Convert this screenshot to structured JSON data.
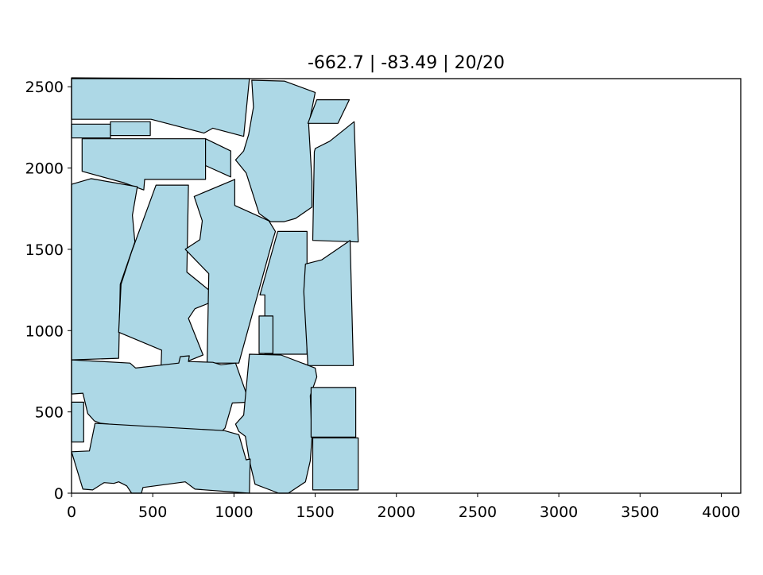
{
  "chart_data": {
    "type": "polygon",
    "title": "-662.7 | -83.49 | 20/20",
    "xlabel": "",
    "ylabel": "",
    "xlim": [
      0,
      4120
    ],
    "ylim": [
      0,
      2550
    ],
    "x_ticks": [
      0,
      500,
      1000,
      1500,
      2000,
      2500,
      3000,
      3500,
      4000
    ],
    "y_ticks": [
      0,
      500,
      1000,
      1500,
      2000,
      2500
    ],
    "grid": false,
    "fill_color": "#add8e6",
    "edge_color": "#000000",
    "polygons": [
      [
        [
          0,
          2555
        ],
        [
          1095,
          2550
        ],
        [
          1060,
          2195
        ],
        [
          870,
          2245
        ],
        [
          815,
          2215
        ],
        [
          490,
          2300
        ],
        [
          0,
          2300
        ]
      ],
      [
        [
          0,
          2270
        ],
        [
          240,
          2270
        ],
        [
          240,
          2185
        ],
        [
          0,
          2185
        ]
      ],
      [
        [
          240,
          2285
        ],
        [
          485,
          2285
        ],
        [
          485,
          2200
        ],
        [
          240,
          2200
        ]
      ],
      [
        [
          65,
          2180
        ],
        [
          825,
          2180
        ],
        [
          825,
          1930
        ],
        [
          450,
          1930
        ],
        [
          445,
          1865
        ],
        [
          320,
          1910
        ],
        [
          65,
          1980
        ]
      ],
      [
        [
          825,
          2180
        ],
        [
          980,
          2105
        ],
        [
          980,
          1945
        ],
        [
          825,
          2015
        ]
      ],
      [
        [
          1110,
          2540
        ],
        [
          1310,
          2535
        ],
        [
          1500,
          2465
        ],
        [
          1460,
          2265
        ],
        [
          1480,
          1920
        ],
        [
          1480,
          1760
        ],
        [
          1380,
          1690
        ],
        [
          1310,
          1670
        ],
        [
          1225,
          1670
        ],
        [
          1155,
          1720
        ],
        [
          1075,
          1970
        ],
        [
          1010,
          2050
        ],
        [
          1060,
          2105
        ],
        [
          1090,
          2205
        ],
        [
          1120,
          2375
        ]
      ],
      [
        [
          1510,
          2420
        ],
        [
          1710,
          2420
        ],
        [
          1640,
          2275
        ],
        [
          1455,
          2275
        ]
      ],
      [
        [
          1500,
          2120
        ],
        [
          1590,
          2165
        ],
        [
          1740,
          2285
        ],
        [
          1765,
          1545
        ],
        [
          1485,
          1555
        ],
        [
          1495,
          2100
        ]
      ],
      [
        [
          0,
          1900
        ],
        [
          120,
          1935
        ],
        [
          405,
          1885
        ],
        [
          375,
          1710
        ],
        [
          390,
          1545
        ],
        [
          300,
          1285
        ],
        [
          290,
          830
        ],
        [
          0,
          820
        ]
      ],
      [
        [
          520,
          1895
        ],
        [
          720,
          1895
        ],
        [
          710,
          1360
        ],
        [
          845,
          1250
        ],
        [
          860,
          1175
        ],
        [
          760,
          1135
        ],
        [
          720,
          1075
        ],
        [
          810,
          850
        ],
        [
          550,
          745
        ],
        [
          555,
          880
        ],
        [
          290,
          990
        ],
        [
          305,
          1285
        ],
        [
          370,
          1485
        ]
      ],
      [
        [
          755,
          1825
        ],
        [
          1005,
          1930
        ],
        [
          1005,
          1770
        ],
        [
          1215,
          1675
        ],
        [
          1255,
          1610
        ],
        [
          1235,
          1545
        ],
        [
          1030,
          800
        ],
        [
          835,
          800
        ],
        [
          845,
          1350
        ],
        [
          700,
          1500
        ],
        [
          790,
          1560
        ],
        [
          805,
          1675
        ]
      ],
      [
        [
          1270,
          1610
        ],
        [
          1450,
          1610
        ],
        [
          1450,
          855
        ],
        [
          1190,
          855
        ],
        [
          1190,
          1220
        ],
        [
          1160,
          1220
        ]
      ],
      [
        [
          1155,
          1090
        ],
        [
          1240,
          1090
        ],
        [
          1240,
          860
        ],
        [
          1155,
          860
        ]
      ],
      [
        [
          1440,
          1410
        ],
        [
          1540,
          1435
        ],
        [
          1715,
          1555
        ],
        [
          1735,
          785
        ],
        [
          1455,
          785
        ],
        [
          1430,
          1240
        ]
      ],
      [
        [
          0,
          820
        ],
        [
          360,
          800
        ],
        [
          395,
          770
        ],
        [
          660,
          800
        ],
        [
          670,
          840
        ],
        [
          725,
          845
        ],
        [
          720,
          810
        ],
        [
          870,
          805
        ],
        [
          920,
          790
        ],
        [
          1010,
          800
        ],
        [
          1095,
          560
        ],
        [
          990,
          555
        ],
        [
          945,
          400
        ],
        [
          925,
          380
        ],
        [
          620,
          385
        ],
        [
          180,
          430
        ],
        [
          140,
          445
        ],
        [
          100,
          490
        ],
        [
          70,
          615
        ],
        [
          0,
          610
        ]
      ],
      [
        [
          1095,
          855
        ],
        [
          1290,
          850
        ],
        [
          1500,
          770
        ],
        [
          1510,
          715
        ],
        [
          1470,
          600
        ],
        [
          1480,
          340
        ],
        [
          1470,
          200
        ],
        [
          1440,
          70
        ],
        [
          1335,
          0
        ],
        [
          1275,
          0
        ],
        [
          1130,
          55
        ],
        [
          1095,
          200
        ],
        [
          1070,
          350
        ],
        [
          1030,
          380
        ],
        [
          1010,
          425
        ],
        [
          1060,
          480
        ]
      ],
      [
        [
          1475,
          650
        ],
        [
          1750,
          650
        ],
        [
          1750,
          345
        ],
        [
          1475,
          345
        ]
      ],
      [
        [
          1485,
          340
        ],
        [
          1765,
          340
        ],
        [
          1765,
          20
        ],
        [
          1485,
          20
        ]
      ],
      [
        [
          0,
          560
        ],
        [
          75,
          560
        ],
        [
          75,
          315
        ],
        [
          0,
          315
        ]
      ],
      [
        [
          0,
          255
        ],
        [
          110,
          260
        ],
        [
          145,
          430
        ],
        [
          940,
          385
        ],
        [
          1030,
          360
        ],
        [
          1075,
          205
        ],
        [
          1100,
          210
        ],
        [
          1095,
          0
        ],
        [
          760,
          25
        ],
        [
          700,
          70
        ],
        [
          440,
          35
        ],
        [
          430,
          0
        ],
        [
          370,
          0
        ],
        [
          340,
          45
        ],
        [
          320,
          55
        ],
        [
          290,
          70
        ],
        [
          260,
          60
        ],
        [
          200,
          65
        ],
        [
          130,
          20
        ],
        [
          70,
          25
        ]
      ]
    ]
  }
}
